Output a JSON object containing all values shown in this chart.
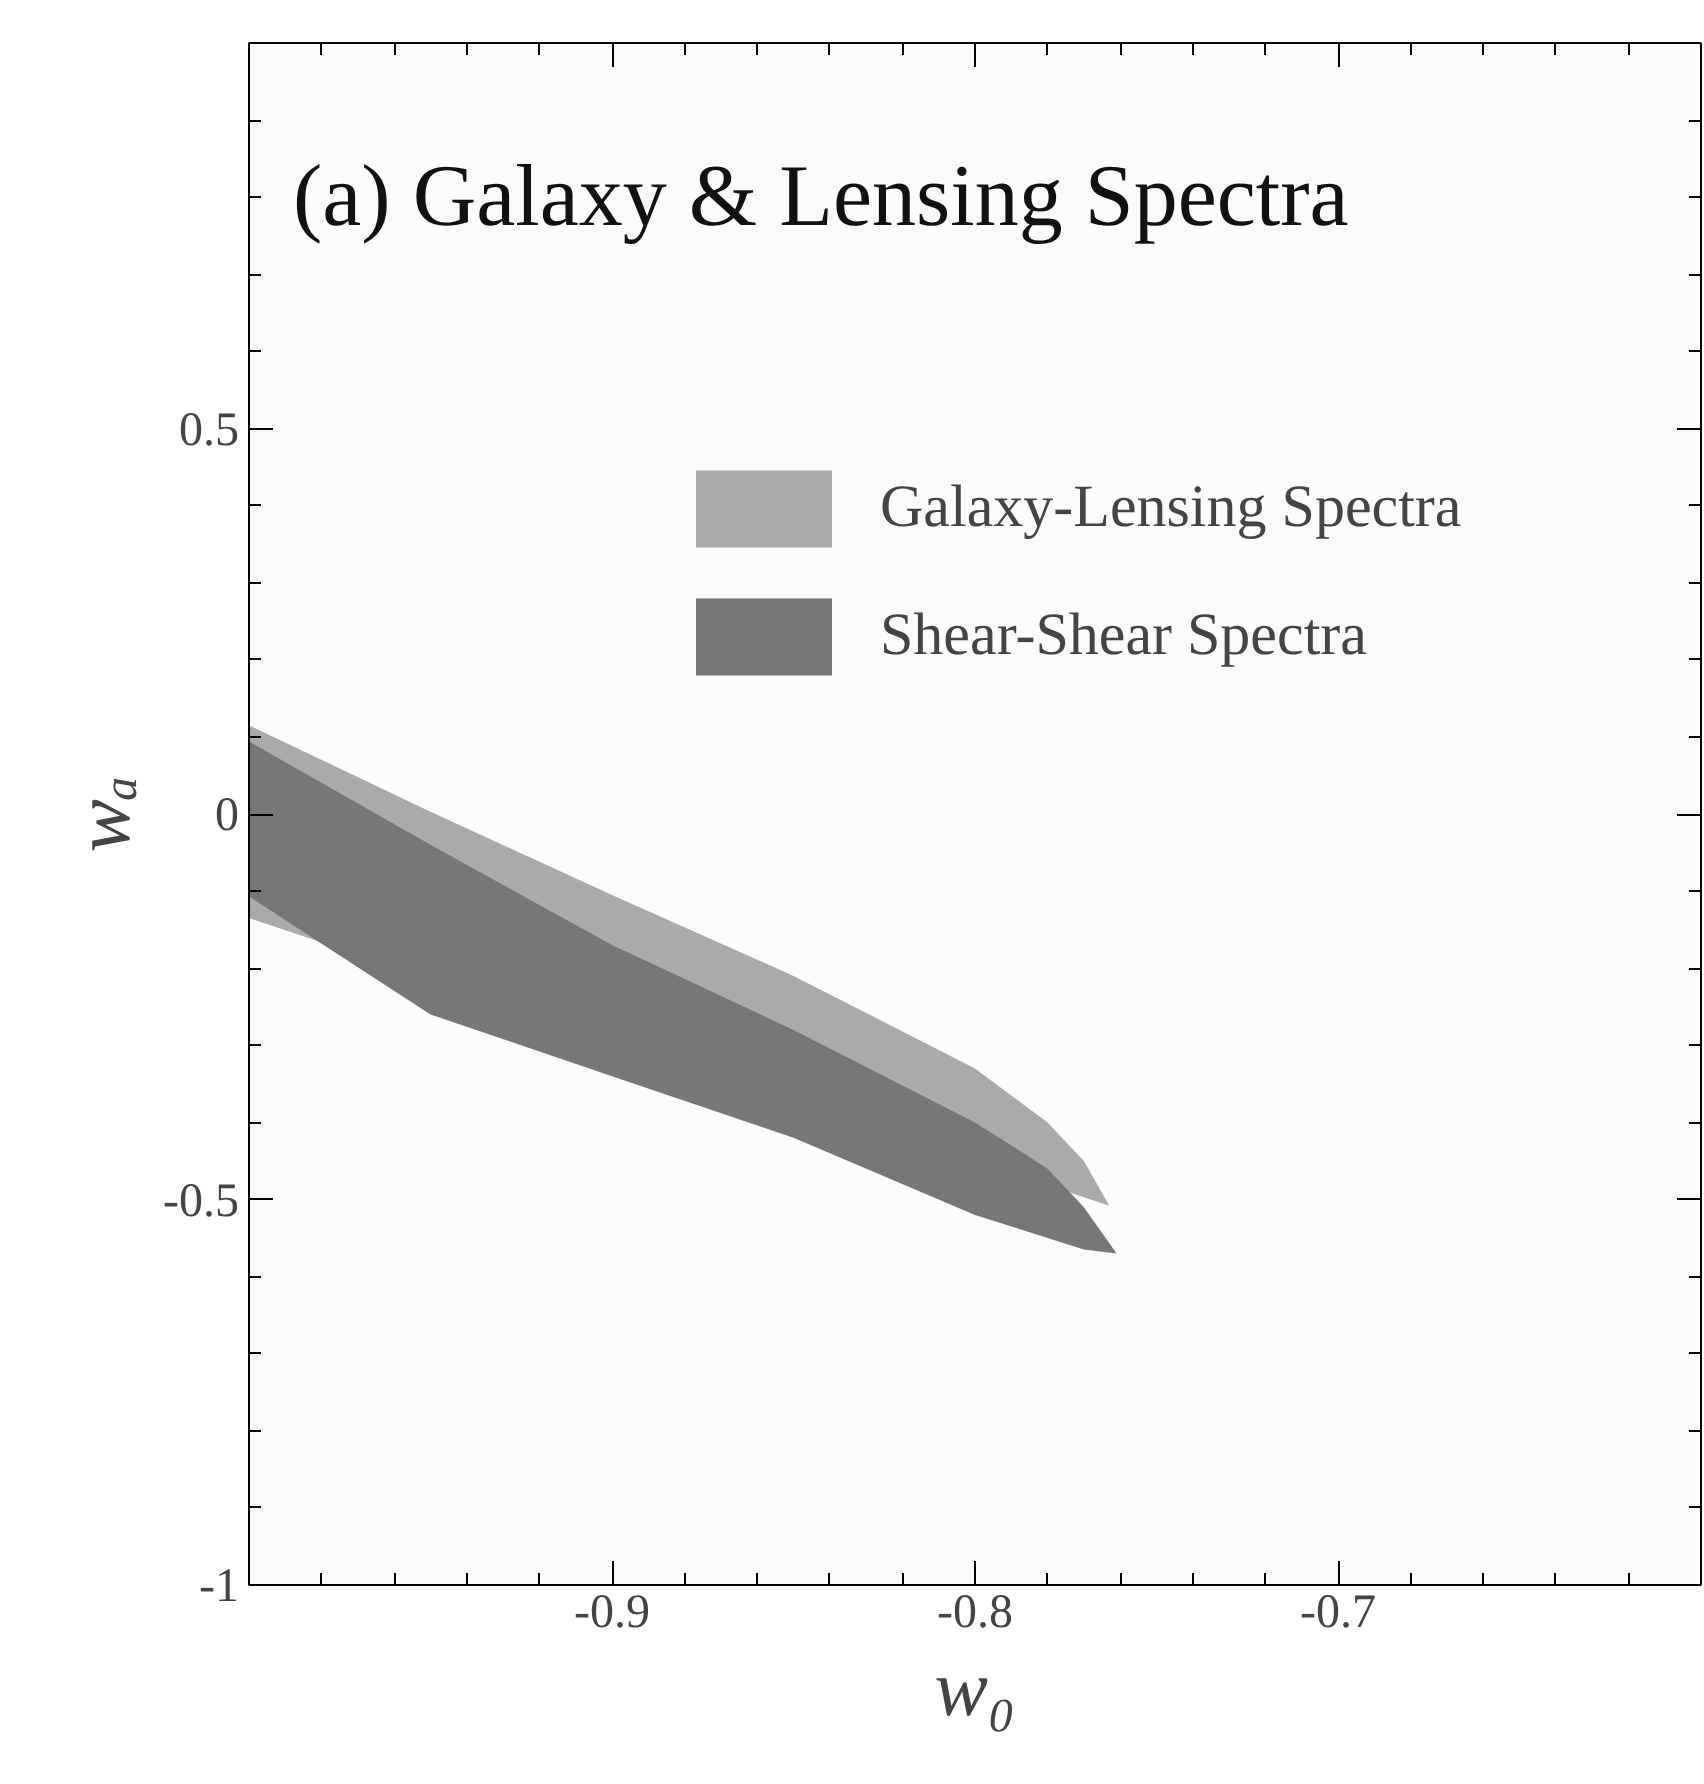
{
  "chart_data": {
    "type": "area",
    "title": "(a) Galaxy & Lensing Spectra",
    "xlabel": "w₀",
    "ylabel": "wₐ",
    "xlim": [
      -1.0,
      -0.6
    ],
    "ylim": [
      -1.0,
      1.0
    ],
    "xticks": [
      -0.9,
      -0.8,
      -0.7
    ],
    "yticks": [
      -1,
      -0.5,
      0,
      0.5
    ],
    "grid": false,
    "legend": "top right",
    "series": [
      {
        "name": "Galaxy-Lensing Spectra",
        "color": "#aaaaaa",
        "x": [
          -1.0,
          -0.95,
          -0.9,
          -0.85,
          -0.8,
          -0.78,
          -0.77,
          -0.763,
          -1.0
        ],
        "values": [
          0.115,
          0.003,
          -0.105,
          -0.21,
          -0.33,
          -0.4,
          -0.45,
          -0.508,
          -0.135
        ]
      },
      {
        "name": "Shear-Shear Spectra",
        "color": "#777777",
        "x": [
          -1.0,
          -0.95,
          -0.9,
          -0.85,
          -0.8,
          -0.78,
          -0.77,
          -0.761,
          -0.77,
          -0.78,
          -0.8,
          -0.85,
          -0.9,
          -0.95,
          -1.0
        ],
        "values": [
          0.094,
          -0.04,
          -0.17,
          -0.28,
          -0.4,
          -0.46,
          -0.51,
          -0.57,
          -0.565,
          -0.55,
          -0.52,
          -0.42,
          -0.34,
          -0.26,
          -0.107
        ]
      }
    ]
  }
}
